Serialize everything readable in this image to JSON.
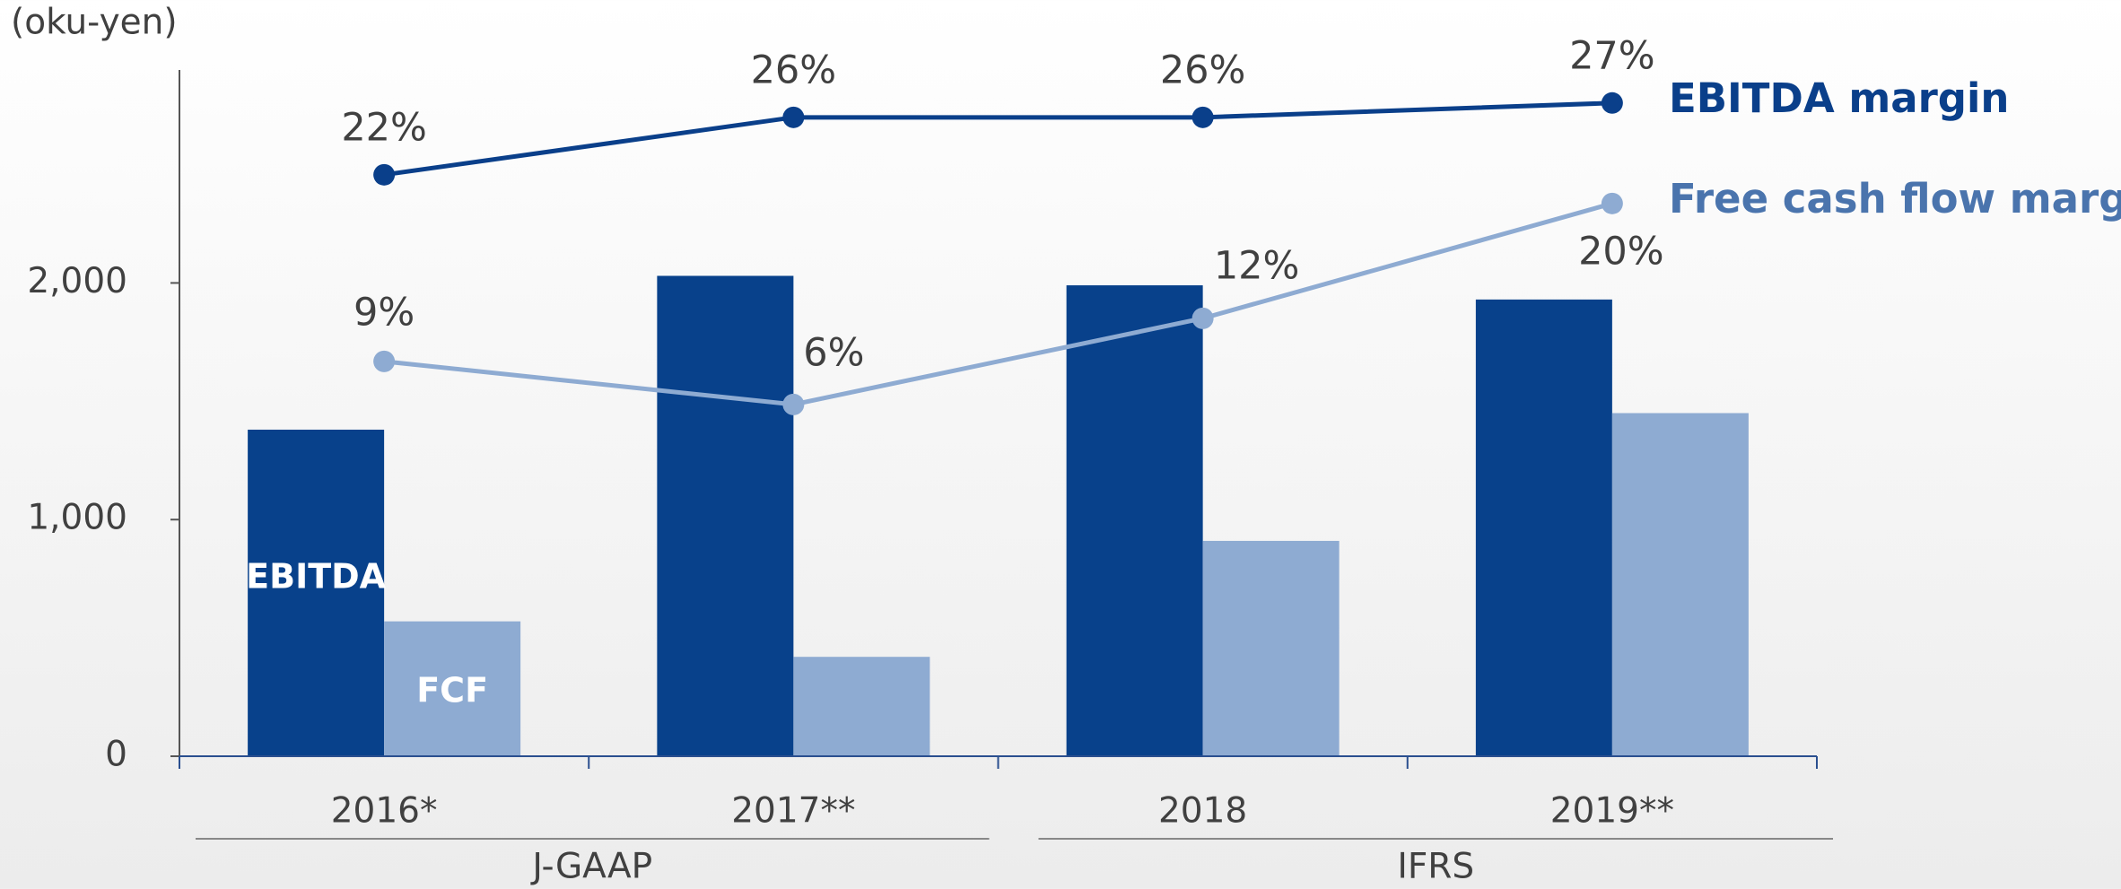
{
  "chart_data": {
    "type": "bar",
    "y_axis_label": "(oku-yen)",
    "categories": [
      "2016*",
      "2017**",
      "2018",
      "2019**"
    ],
    "groups": [
      "J-GAAP",
      "IFRS"
    ],
    "ylim": [
      0,
      2900
    ],
    "yticks": [
      0,
      {
        "value": 1000,
        "label": "1,000"
      },
      {
        "value": 2000,
        "label": "2,000"
      }
    ],
    "y2lim": [
      -18.5,
      29.3
    ],
    "series": [
      {
        "name": "EBITDA",
        "type": "bar",
        "color": "#08418b",
        "values": [
          1380,
          2030,
          1990,
          1930
        ]
      },
      {
        "name": "FCF",
        "type": "bar",
        "color": "#8eabd2",
        "values": [
          570,
          420,
          910,
          1450
        ]
      },
      {
        "name": "EBITDA margin",
        "type": "line",
        "axis": "y2",
        "color": "#0a3f8a",
        "values": [
          22,
          26,
          26,
          27
        ],
        "value_labels": [
          "22%",
          "26%",
          "26%",
          "27%"
        ]
      },
      {
        "name": "Free cash flow margin",
        "type": "line",
        "axis": "y2",
        "color": "#8eabd2",
        "legend_color": "#4a74ad",
        "values": [
          9,
          6,
          12,
          20
        ],
        "value_labels": [
          "9%",
          "6%",
          "12%",
          "20%"
        ]
      }
    ]
  }
}
